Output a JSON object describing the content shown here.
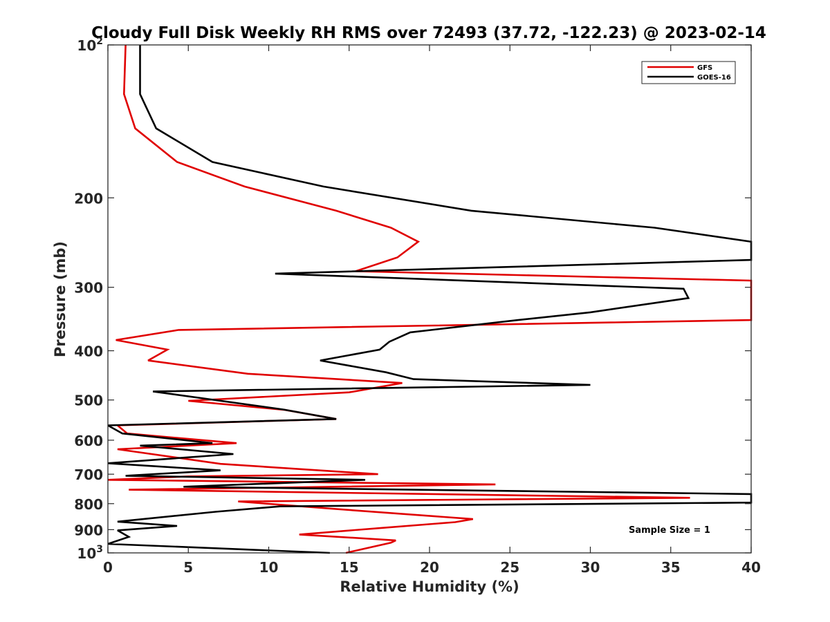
{
  "chart_data": {
    "type": "line",
    "title": "Cloudy Full Disk Weekly RH RMS over 72493 (37.72, -122.23) @ 2023-02-14",
    "xlabel": "Relative Humidity (%)",
    "ylabel": "Pressure (mb)",
    "xlim": [
      0,
      40
    ],
    "ylim": [
      100,
      1000
    ],
    "y_scale": "log",
    "y_reversed": true,
    "x_ticks": [
      "0",
      "5",
      "10",
      "15",
      "20",
      "25",
      "30",
      "35",
      "40"
    ],
    "y_ticks": [
      {
        "value": 100,
        "base": "10",
        "exp": "2"
      },
      {
        "value": 200,
        "label": "200"
      },
      {
        "value": 300,
        "label": "300"
      },
      {
        "value": 400,
        "label": "400"
      },
      {
        "value": 500,
        "label": "500"
      },
      {
        "value": 600,
        "label": "600"
      },
      {
        "value": 700,
        "label": "700"
      },
      {
        "value": 800,
        "label": "800"
      },
      {
        "value": 900,
        "label": "900"
      },
      {
        "value": 1000,
        "base": "10",
        "exp": "3"
      }
    ],
    "legend_position": "top-right",
    "annotation": "Sample Size = 1",
    "series": [
      {
        "name": "GFS",
        "color": "#e00000",
        "points": [
          [
            1.1,
            100
          ],
          [
            1.0,
            125
          ],
          [
            1.7,
            146
          ],
          [
            4.3,
            170
          ],
          [
            8.5,
            190
          ],
          [
            14.2,
            212
          ],
          [
            17.6,
            229
          ],
          [
            19.3,
            244
          ],
          [
            18.0,
            262
          ],
          [
            15.4,
            279
          ],
          [
            40,
            291
          ],
          [
            40,
            348
          ],
          [
            4.4,
            364
          ],
          [
            0.5,
            381
          ],
          [
            3.7,
            398
          ],
          [
            2.5,
            418
          ],
          [
            8.7,
            444
          ],
          [
            18.3,
            463
          ],
          [
            15.0,
            483
          ],
          [
            5.0,
            502
          ],
          [
            11.0,
            523
          ],
          [
            14.2,
            545
          ],
          [
            0.6,
            561
          ],
          [
            1.2,
            582
          ],
          [
            8.0,
            608
          ],
          [
            0.6,
            625
          ],
          [
            7.0,
            668
          ],
          [
            16.8,
            700
          ],
          [
            5.0,
            707
          ],
          [
            0,
            718
          ],
          [
            24.1,
            733
          ],
          [
            1.3,
            751
          ],
          [
            36.2,
            779
          ],
          [
            8.1,
            792
          ],
          [
            14.3,
            820
          ],
          [
            22.7,
            858
          ],
          [
            21.6,
            870
          ],
          [
            17.0,
            893
          ],
          [
            11.9,
            920
          ],
          [
            17.9,
            945
          ],
          [
            17.6,
            955
          ],
          [
            14.8,
            1000
          ]
        ]
      },
      {
        "name": "GOES-16",
        "color": "#000000",
        "points": [
          [
            2.0,
            100
          ],
          [
            2.0,
            125
          ],
          [
            3.0,
            146
          ],
          [
            6.5,
            170
          ],
          [
            13.4,
            190
          ],
          [
            22.6,
            212
          ],
          [
            34.0,
            229
          ],
          [
            40,
            244
          ],
          [
            40,
            265
          ],
          [
            10.4,
            282
          ],
          [
            35.8,
            302
          ],
          [
            36.1,
            315
          ],
          [
            30.0,
            336
          ],
          [
            25.5,
            348
          ],
          [
            18.8,
            368
          ],
          [
            17.5,
            384
          ],
          [
            16.9,
            398
          ],
          [
            13.2,
            418
          ],
          [
            17.3,
            441
          ],
          [
            19.0,
            455
          ],
          [
            30.0,
            467
          ],
          [
            2.8,
            481
          ],
          [
            10.9,
            522
          ],
          [
            14.2,
            545
          ],
          [
            0,
            561
          ],
          [
            0.9,
            582
          ],
          [
            6.5,
            608
          ],
          [
            2.0,
            615
          ],
          [
            7.8,
            639
          ],
          [
            0,
            666
          ],
          [
            7.0,
            688
          ],
          [
            1.1,
            705
          ],
          [
            16.0,
            718
          ],
          [
            4.7,
            741
          ],
          [
            40,
            766
          ],
          [
            40,
            796
          ],
          [
            10.7,
            810
          ],
          [
            6.7,
            830
          ],
          [
            0.6,
            868
          ],
          [
            4.3,
            885
          ],
          [
            0.6,
            903
          ],
          [
            1.3,
            930
          ],
          [
            0,
            960
          ],
          [
            13.8,
            1000
          ]
        ]
      }
    ]
  }
}
